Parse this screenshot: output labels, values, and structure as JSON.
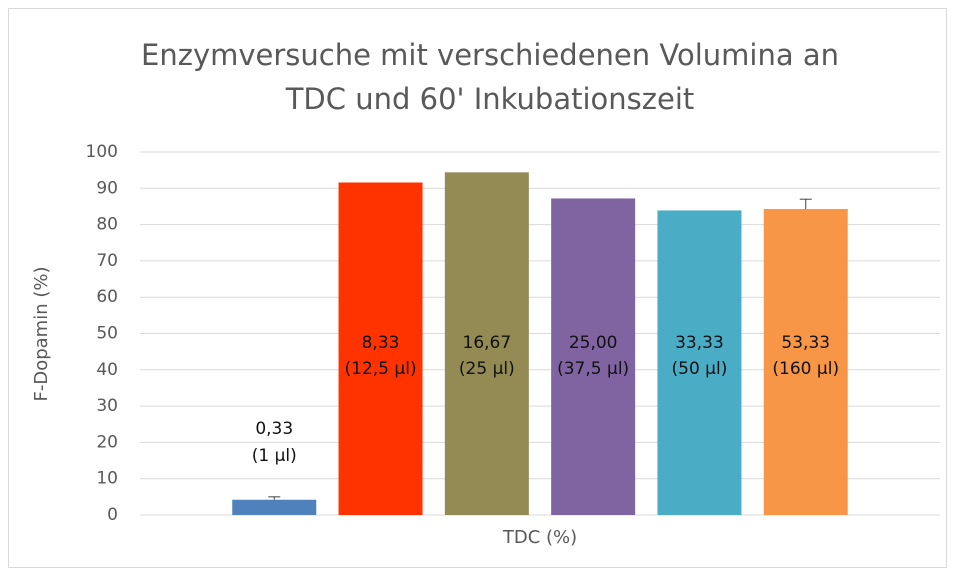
{
  "chart_data": {
    "type": "bar",
    "title": [
      "Enzymversuche mit verschiedenen Volumina an",
      "TDC und 60' Inkubationszeit"
    ],
    "x_label": "TDC (%)",
    "y_label": "F-Dopamin (%)",
    "values": [
      4.2,
      91.6,
      94.4,
      87.2,
      83.9,
      84.3
    ],
    "errors": [
      0.8,
      null,
      null,
      null,
      null,
      2.7
    ],
    "colors": [
      "#4f81bd",
      "#ff3300",
      "#948a54",
      "#8064a2",
      "#4bacc6",
      "#f79646"
    ],
    "bar_labels": [
      [
        "0,33",
        "(1 µl)"
      ],
      [
        "8,33",
        "(12,5 µl)"
      ],
      [
        "16,67",
        "(25 µl)"
      ],
      [
        "25,00",
        "(37,5 µl)"
      ],
      [
        "33,33",
        "(50 µl)"
      ],
      [
        "53,33",
        "(160 µl)"
      ]
    ],
    "ylim": [
      0,
      100
    ],
    "yticks": [
      0,
      10,
      20,
      30,
      40,
      50,
      60,
      70,
      80,
      90,
      100
    ],
    "grid": true
  }
}
